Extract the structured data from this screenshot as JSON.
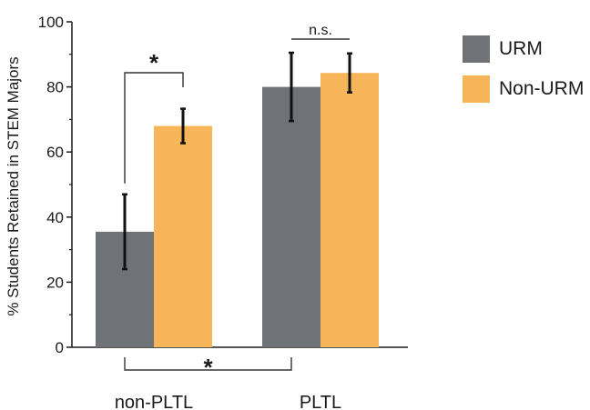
{
  "chart_data": {
    "type": "bar",
    "categories": [
      "non-PLTL",
      "PLTL"
    ],
    "series": [
      {
        "name": "URM",
        "values": [
          35.5,
          80.0
        ],
        "errors": [
          11.5,
          10.5
        ],
        "color": "#6f7277"
      },
      {
        "name": "Non-URM",
        "values": [
          68.0,
          84.3
        ],
        "errors": [
          5.3,
          6.0
        ],
        "color": "#f7b55a"
      }
    ],
    "ylabel": "% Students Retained in STEM Majors",
    "xlabel": "",
    "ylim": [
      0,
      100
    ],
    "yticks": [
      "0",
      "20",
      "40",
      "60",
      "80",
      "100"
    ],
    "grid": false,
    "legend_position": "top-right",
    "annotations": [
      {
        "text": "*",
        "between": "non-PLTL URM vs Non-URM"
      },
      {
        "text": "n.s.",
        "between": "PLTL URM vs Non-URM"
      },
      {
        "text": "*",
        "between": "non-PLTL URM vs PLTL URM"
      }
    ]
  }
}
